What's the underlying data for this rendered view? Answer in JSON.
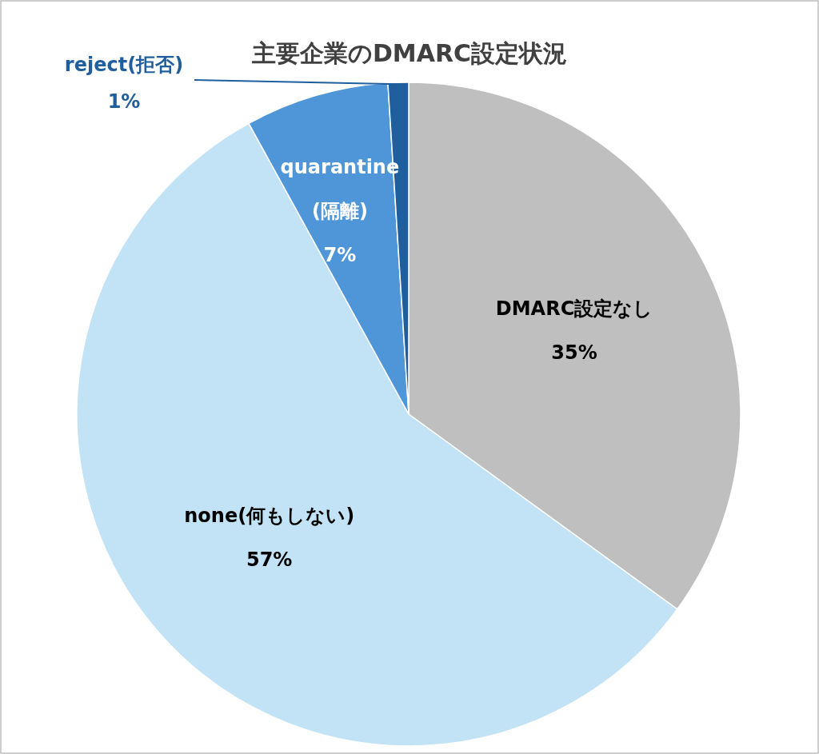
{
  "chart_data": {
    "type": "pie",
    "title": "主要企業のDMARC設定状況",
    "categories": [
      "DMARC設定なし",
      "none(何もしない)",
      "quarantine(隔離)",
      "reject(拒否)"
    ],
    "values": [
      35,
      57,
      7,
      1
    ],
    "colors": [
      "#bfbfbf",
      "#c2e3f5",
      "#4f96d8",
      "#1f5f9e"
    ],
    "value_labels": [
      "35%",
      "57%",
      "7%",
      "1%"
    ]
  }
}
